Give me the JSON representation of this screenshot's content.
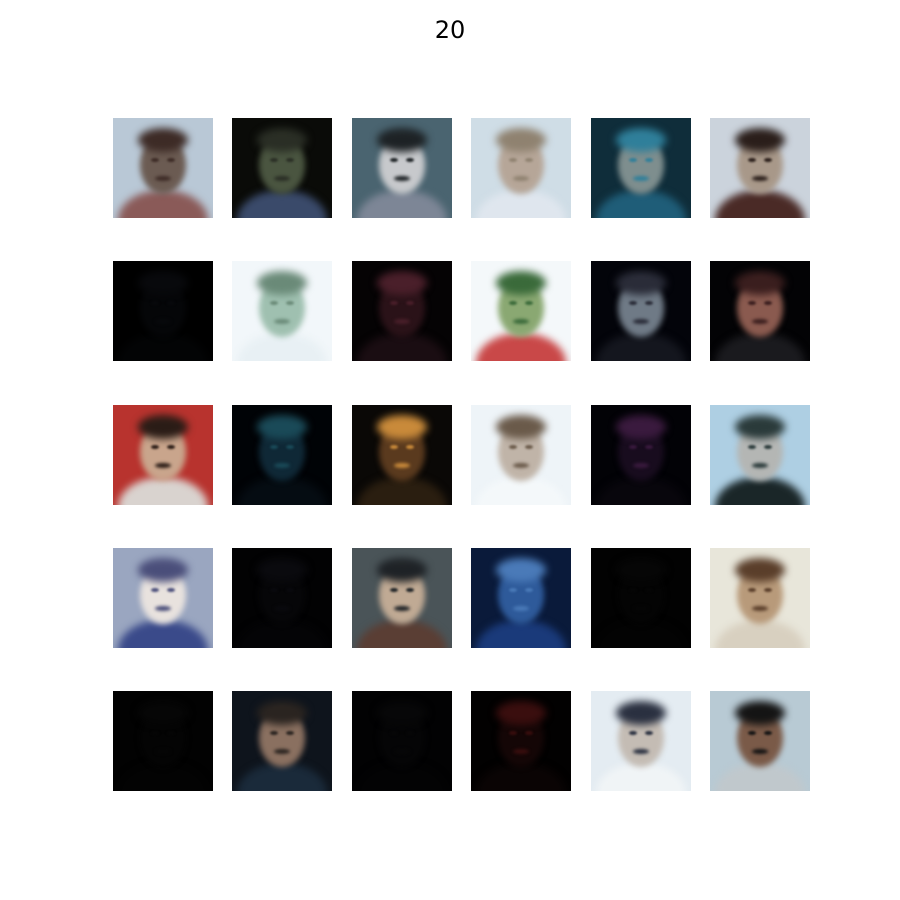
{
  "title": "20",
  "grid": {
    "rows": 5,
    "cols": 6,
    "tiles": [
      {
        "bg": "#b9c8d6",
        "face": "#6b5b52",
        "accent": "#3d2b26",
        "body": "#8a5a58"
      },
      {
        "bg": "#0a0b08",
        "face": "#4a5540",
        "accent": "#2a2e25",
        "body": "#3a4a6a"
      },
      {
        "bg": "#4a6470",
        "face": "#c7c9cc",
        "accent": "#1d2225",
        "body": "#7d8696"
      },
      {
        "bg": "#cfdde6",
        "face": "#b6a698",
        "accent": "#8f8270",
        "body": "#dfe6ee"
      },
      {
        "bg": "#0f2d3a",
        "face": "#7e8e8e",
        "accent": "#2f7f9a",
        "body": "#1f5d78"
      },
      {
        "bg": "#cbd3dc",
        "face": "#a89889",
        "accent": "#2a1e1a",
        "body": "#4a2a26"
      },
      {
        "bg": "#000000",
        "face": "#050608",
        "accent": "#08090c",
        "body": "#030405"
      },
      {
        "bg": "#f2f7fa",
        "face": "#9fc0b0",
        "accent": "#6a8a78",
        "body": "#e8f0f4"
      },
      {
        "bg": "#050304",
        "face": "#2a1218",
        "accent": "#4a1f2a",
        "body": "#1a0d12"
      },
      {
        "bg": "#f4f8fa",
        "face": "#8aa872",
        "accent": "#3a6a3a",
        "body": "#c94848"
      },
      {
        "bg": "#03040a",
        "face": "#6f7a86",
        "accent": "#2a2c38",
        "body": "#14161e"
      },
      {
        "bg": "#030305",
        "face": "#8a5a4f",
        "accent": "#3a1e1e",
        "body": "#1a1a1e"
      },
      {
        "bg": "#b8332e",
        "face": "#c9a58c",
        "accent": "#2a1c16",
        "body": "#d9d3cf"
      },
      {
        "bg": "#000306",
        "face": "#0f2836",
        "accent": "#1a4a58",
        "body": "#050c12"
      },
      {
        "bg": "#0a0806",
        "face": "#5a3a1e",
        "accent": "#c98a3a",
        "body": "#2a1e10"
      },
      {
        "bg": "#eef4f8",
        "face": "#c0b4a8",
        "accent": "#6a5a4a",
        "body": "#f4f8fa"
      },
      {
        "bg": "#020206",
        "face": "#180c1e",
        "accent": "#3a1a3e",
        "body": "#08060c"
      },
      {
        "bg": "#aecfe3",
        "face": "#b4b6b4",
        "accent": "#2a3a3a",
        "body": "#1a2628"
      },
      {
        "bg": "#9aa6c0",
        "face": "#e8e2de",
        "accent": "#4a4e7a",
        "body": "#3a4a8a"
      },
      {
        "bg": "#020203",
        "face": "#060608",
        "accent": "#0a0a0e",
        "body": "#040406"
      },
      {
        "bg": "#4a5458",
        "face": "#c0aa94",
        "accent": "#1e2226",
        "body": "#5a3e34"
      },
      {
        "bg": "#0a1a3a",
        "face": "#2e5a9a",
        "accent": "#4a7ab8",
        "body": "#1a3a7a"
      },
      {
        "bg": "#020202",
        "face": "#040404",
        "accent": "#060606",
        "body": "#030303"
      },
      {
        "bg": "#e8e6da",
        "face": "#b89a7a",
        "accent": "#5a3e2a",
        "body": "#d8d0c0"
      },
      {
        "bg": "#020202",
        "face": "#040404",
        "accent": "#060606",
        "body": "#030303"
      },
      {
        "bg": "#0e141c",
        "face": "#8a7060",
        "accent": "#2a2420",
        "body": "#1a2a3a"
      },
      {
        "bg": "#020203",
        "face": "#050506",
        "accent": "#070708",
        "body": "#030304"
      },
      {
        "bg": "#020101",
        "face": "#140606",
        "accent": "#3a0e0e",
        "body": "#0a0404"
      },
      {
        "bg": "#e4ecf2",
        "face": "#c4bcb4",
        "accent": "#2a3040",
        "body": "#f0f4f6"
      },
      {
        "bg": "#b8cad4",
        "face": "#7a5a48",
        "accent": "#141414",
        "body": "#c0c8cc"
      }
    ]
  }
}
